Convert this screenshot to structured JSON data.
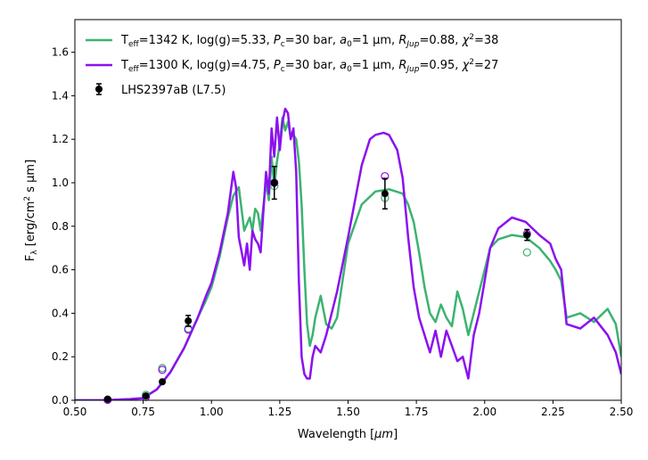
{
  "chart_data": {
    "type": "line",
    "xlabel_parts": {
      "pre": "Wavelength [",
      "unit": "μm",
      "post": "]"
    },
    "ylabel_parts": {
      "pre": "F",
      "sub": "λ",
      "mid": " [erg/cm",
      "sup": "2",
      "post": " s μm]"
    },
    "xlim": [
      0.5,
      2.5
    ],
    "ylim": [
      0.0,
      1.75
    ],
    "xticks": [
      0.5,
      0.75,
      1.0,
      1.25,
      1.5,
      1.75,
      2.0,
      2.25,
      2.5
    ],
    "xtick_labels": [
      "0.50",
      "0.75",
      "1.00",
      "1.25",
      "1.50",
      "1.75",
      "2.00",
      "2.25",
      "2.50"
    ],
    "yticks": [
      0.0,
      0.2,
      0.4,
      0.6,
      0.8,
      1.0,
      1.2,
      1.4,
      1.6
    ],
    "ytick_labels": [
      "0.0",
      "0.2",
      "0.4",
      "0.6",
      "0.8",
      "1.0",
      "1.2",
      "1.4",
      "1.6"
    ],
    "legend_location": "top-left",
    "series": [
      {
        "name": "T_eff=1342 K, log(g)=5.33, P_c=30 bar, a_0=1 μm, R_Jup=0.88, χ²=38",
        "legend": {
          "T": "T",
          "teff_sub": "eff",
          "t1": "=1342 K, log(g)=5.33, ",
          "P": "P",
          "p_sub": "c",
          "t2": "=30 bar, ",
          "a": "a",
          "a_sub": "0",
          "t3": "=1 μm, ",
          "R": "R",
          "r_sub": "Jup",
          "t4": "=0.88, ",
          "chi": "χ",
          "chi_sup": "2",
          "t5": "=38"
        },
        "color": "#3cb371",
        "x": [
          0.5,
          0.6,
          0.7,
          0.75,
          0.8,
          0.85,
          0.9,
          0.95,
          0.98,
          1.0,
          1.03,
          1.06,
          1.08,
          1.1,
          1.12,
          1.14,
          1.15,
          1.16,
          1.17,
          1.18,
          1.2,
          1.21,
          1.22,
          1.23,
          1.24,
          1.25,
          1.26,
          1.27,
          1.28,
          1.29,
          1.3,
          1.31,
          1.32,
          1.33,
          1.34,
          1.35,
          1.36,
          1.37,
          1.38,
          1.4,
          1.42,
          1.44,
          1.46,
          1.5,
          1.55,
          1.6,
          1.65,
          1.7,
          1.72,
          1.74,
          1.76,
          1.78,
          1.8,
          1.82,
          1.84,
          1.86,
          1.88,
          1.9,
          1.92,
          1.94,
          1.96,
          1.98,
          2.0,
          2.02,
          2.05,
          2.1,
          2.15,
          2.2,
          2.24,
          2.26,
          2.28,
          2.3,
          2.35,
          2.4,
          2.45,
          2.48,
          2.5
        ],
        "y": [
          0.0,
          0.0,
          0.005,
          0.01,
          0.05,
          0.13,
          0.24,
          0.38,
          0.46,
          0.52,
          0.66,
          0.84,
          0.94,
          0.98,
          0.78,
          0.84,
          0.78,
          0.88,
          0.86,
          0.78,
          1.0,
          0.92,
          1.12,
          0.98,
          1.1,
          1.18,
          1.3,
          1.24,
          1.28,
          1.21,
          1.22,
          1.2,
          1.1,
          0.9,
          0.6,
          0.35,
          0.25,
          0.3,
          0.38,
          0.48,
          0.35,
          0.33,
          0.38,
          0.72,
          0.9,
          0.96,
          0.97,
          0.95,
          0.9,
          0.82,
          0.68,
          0.52,
          0.4,
          0.36,
          0.44,
          0.38,
          0.34,
          0.5,
          0.42,
          0.3,
          0.4,
          0.5,
          0.6,
          0.7,
          0.74,
          0.76,
          0.75,
          0.7,
          0.64,
          0.6,
          0.55,
          0.38,
          0.4,
          0.36,
          0.42,
          0.35,
          0.2
        ]
      },
      {
        "name": "T_eff=1300 K, log(g)=4.75, P_c=30 bar, a_0=1 μm, R_Jup=0.95, χ²=27",
        "legend": {
          "T": "T",
          "teff_sub": "eff",
          "t1": "=1300 K, log(g)=4.75, ",
          "P": "P",
          "p_sub": "c",
          "t2": "=30 bar, ",
          "a": "a",
          "a_sub": "0",
          "t3": "=1 μm, ",
          "R": "R",
          "r_sub": "Jup",
          "t4": "=0.95, ",
          "chi": "χ",
          "chi_sup": "2",
          "t5": "=27"
        },
        "color": "#8b10f0",
        "x": [
          0.5,
          0.6,
          0.7,
          0.75,
          0.8,
          0.85,
          0.9,
          0.95,
          0.98,
          1.0,
          1.03,
          1.06,
          1.08,
          1.09,
          1.1,
          1.12,
          1.13,
          1.14,
          1.15,
          1.16,
          1.17,
          1.18,
          1.2,
          1.21,
          1.22,
          1.23,
          1.24,
          1.25,
          1.26,
          1.27,
          1.28,
          1.29,
          1.3,
          1.31,
          1.32,
          1.33,
          1.34,
          1.35,
          1.36,
          1.37,
          1.38,
          1.4,
          1.42,
          1.44,
          1.46,
          1.5,
          1.55,
          1.58,
          1.6,
          1.63,
          1.65,
          1.68,
          1.7,
          1.72,
          1.74,
          1.76,
          1.78,
          1.8,
          1.82,
          1.84,
          1.86,
          1.88,
          1.9,
          1.92,
          1.94,
          1.96,
          1.98,
          2.0,
          2.02,
          2.05,
          2.1,
          2.15,
          2.2,
          2.24,
          2.26,
          2.28,
          2.3,
          2.35,
          2.4,
          2.45,
          2.48,
          2.5
        ],
        "y": [
          0.0,
          0.0,
          0.005,
          0.01,
          0.05,
          0.13,
          0.24,
          0.38,
          0.48,
          0.54,
          0.68,
          0.86,
          1.05,
          0.98,
          0.75,
          0.62,
          0.72,
          0.6,
          0.78,
          0.74,
          0.72,
          0.68,
          1.05,
          0.95,
          1.25,
          1.12,
          1.3,
          1.15,
          1.28,
          1.34,
          1.32,
          1.2,
          1.25,
          1.05,
          0.55,
          0.2,
          0.12,
          0.1,
          0.1,
          0.2,
          0.25,
          0.22,
          0.3,
          0.4,
          0.5,
          0.75,
          1.08,
          1.2,
          1.22,
          1.23,
          1.22,
          1.15,
          1.02,
          0.75,
          0.52,
          0.38,
          0.3,
          0.22,
          0.32,
          0.2,
          0.32,
          0.25,
          0.18,
          0.2,
          0.1,
          0.3,
          0.4,
          0.55,
          0.7,
          0.79,
          0.84,
          0.82,
          0.76,
          0.72,
          0.65,
          0.6,
          0.35,
          0.33,
          0.38,
          0.3,
          0.22,
          0.12
        ]
      }
    ],
    "observed": {
      "name": "LHS2397aB (L7.5)",
      "color": "#000000",
      "points": [
        {
          "x": 0.62,
          "y": 0.005,
          "err": 0.003
        },
        {
          "x": 0.76,
          "y": 0.02,
          "err": 0.004
        },
        {
          "x": 0.82,
          "y": 0.085,
          "err": 0.005
        },
        {
          "x": 0.915,
          "y": 0.365,
          "err": 0.025
        },
        {
          "x": 1.23,
          "y": 1.0,
          "err": 0.075
        },
        {
          "x": 1.635,
          "y": 0.95,
          "err": 0.07
        },
        {
          "x": 2.155,
          "y": 0.76,
          "err": 0.025
        }
      ]
    },
    "model_photometry": [
      {
        "series": 0,
        "points": [
          {
            "x": 0.62,
            "y": 0.003
          },
          {
            "x": 0.76,
            "y": 0.025
          },
          {
            "x": 0.82,
            "y": 0.148
          },
          {
            "x": 0.915,
            "y": 0.33
          },
          {
            "x": 1.23,
            "y": 0.985
          },
          {
            "x": 1.635,
            "y": 0.93
          },
          {
            "x": 2.155,
            "y": 0.68
          }
        ]
      },
      {
        "series": 1,
        "points": [
          {
            "x": 0.62,
            "y": 0.002
          },
          {
            "x": 0.76,
            "y": 0.015
          },
          {
            "x": 0.82,
            "y": 0.14
          },
          {
            "x": 0.915,
            "y": 0.325
          },
          {
            "x": 1.23,
            "y": 1.0
          },
          {
            "x": 1.635,
            "y": 1.03
          },
          {
            "x": 2.155,
            "y": 0.765
          }
        ]
      }
    ]
  }
}
